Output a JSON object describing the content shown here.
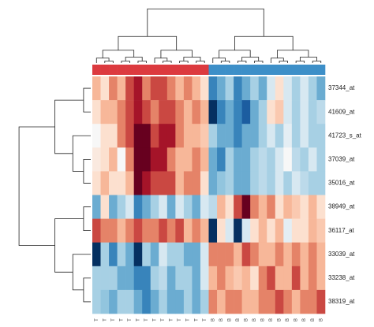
{
  "chart_data": {
    "type": "heatmap",
    "row_labels": [
      "37344_at",
      "41609_at",
      "41723_s_at",
      "37039_at",
      "35016_at",
      "38949_at",
      "36117_at",
      "33039_at",
      "33238_at",
      "38319_at"
    ],
    "categories": [
      "T",
      "T",
      "T",
      "T",
      "T",
      "T",
      "T",
      "T",
      "T",
      "T",
      "T",
      "T",
      "T",
      "T",
      "B",
      "B",
      "B",
      "B",
      "B",
      "B",
      "B",
      "B",
      "B",
      "B",
      "B",
      "B",
      "B",
      "B"
    ],
    "annotation_colors": {
      "T": "#dc3a3f",
      "B": "#3d8fc8"
    },
    "colormap": [
      "#053061",
      "#2166ac",
      "#4393c3",
      "#92c5de",
      "#d1e5f0",
      "#f7f7f7",
      "#fddbc7",
      "#f4a582",
      "#d6604d",
      "#b2182b",
      "#67001f"
    ],
    "values": [
      [
        1,
        0.5,
        1.5,
        1,
        2,
        2.5,
        1.5,
        2,
        2,
        1.5,
        1,
        1.5,
        1,
        0.5,
        -2,
        -1.5,
        -1,
        -2,
        -1.5,
        -1,
        -1.5,
        -0.5,
        0.5,
        -0.5,
        -1,
        -0.5,
        -1,
        -1.5
      ],
      [
        0.5,
        1,
        1,
        1.5,
        2,
        2.5,
        2,
        1.5,
        2,
        2,
        1.5,
        1,
        1.5,
        1,
        -3,
        -2,
        -1.5,
        -2,
        -2.5,
        -1.5,
        -1,
        0.5,
        0.8,
        -0.5,
        -1,
        -0.5,
        -1,
        -0.8
      ],
      [
        0,
        0.5,
        0.5,
        1.5,
        2,
        3,
        3,
        2,
        2.5,
        2.5,
        1.5,
        1,
        1,
        0.8,
        -1,
        -1.5,
        -1.5,
        -2,
        -1.5,
        -1.5,
        -1,
        -0.5,
        -1,
        -0.3,
        -1,
        -0.5,
        -1,
        -1
      ],
      [
        0.3,
        0.5,
        1,
        0,
        1.5,
        3,
        3,
        2.5,
        2.5,
        1.5,
        1,
        1,
        1.5,
        1,
        -1.5,
        -2,
        -1,
        -1.5,
        -1.5,
        -1,
        -0.8,
        -1,
        -0.5,
        0,
        -0.8,
        -1,
        -0.5,
        -1
      ],
      [
        0.5,
        1,
        0.5,
        0.5,
        1,
        3,
        2.5,
        2,
        2,
        2,
        1,
        1.5,
        1.5,
        0.5,
        -1.5,
        -1.2,
        -1,
        -1.5,
        -1.5,
        -1,
        -0.8,
        -1,
        -0.5,
        -1,
        -0.5,
        -0.8,
        -1,
        -1
      ],
      [
        -1.5,
        0.5,
        -1.5,
        -1,
        -0.5,
        -2,
        -1.5,
        -1,
        -0.5,
        -1.5,
        -0.5,
        -1,
        -1.5,
        -0.5,
        -0.8,
        1,
        0.5,
        2,
        3,
        1.5,
        1,
        1.5,
        0.5,
        1,
        0.8,
        0.5,
        1,
        0.5
      ],
      [
        2,
        1.5,
        1.5,
        1,
        1.5,
        2,
        1.5,
        1.5,
        2,
        1.5,
        2,
        1,
        1.5,
        1,
        -3,
        0.5,
        -0.5,
        -3,
        -0.5,
        0.5,
        1,
        0.5,
        1,
        -0.3,
        0.5,
        0.5,
        1,
        0.8
      ],
      [
        -3,
        -1,
        -2,
        -1,
        -1.5,
        -3,
        -1,
        -1.5,
        -0.5,
        -1,
        -1,
        -1.5,
        -1.5,
        -0.5,
        1.5,
        1.5,
        1.5,
        1,
        2,
        1.5,
        1,
        1,
        1.5,
        1,
        1.5,
        1,
        1.5,
        1
      ],
      [
        -1,
        -1,
        -1,
        -1.5,
        -1.5,
        -2,
        -2,
        -1,
        -0.8,
        -1.5,
        -1,
        -1,
        -1.5,
        -0.5,
        1,
        1.5,
        1,
        0.8,
        1,
        0.5,
        1.5,
        2,
        1,
        1,
        2,
        1,
        1.5,
        1
      ],
      [
        -1,
        -1.2,
        -1.5,
        -1,
        -1,
        -1.5,
        -2,
        -1.5,
        -1,
        -1.5,
        -1.5,
        -1,
        -1.5,
        -1,
        1.5,
        1,
        1.5,
        1.5,
        1,
        1,
        1.5,
        1.5,
        2,
        1.5,
        1,
        1.5,
        1.5,
        2
      ]
    ]
  }
}
